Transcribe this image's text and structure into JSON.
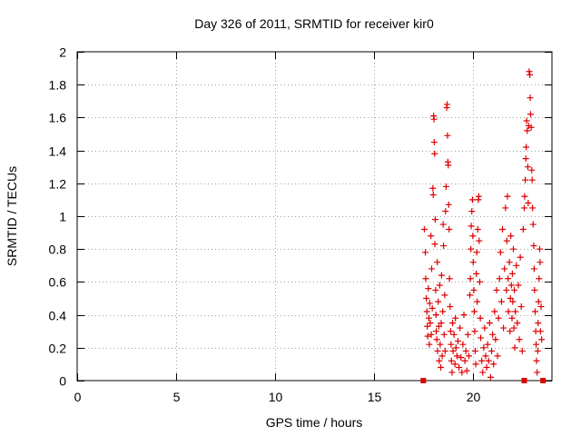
{
  "chart_data": {
    "type": "scatter",
    "title": "Day 326 of 2011, SRMTID for receiver kir0",
    "xlabel": "GPS time / hours",
    "ylabel": "SRMTID / TECUs",
    "xlim": [
      0,
      24
    ],
    "ylim": [
      0,
      2
    ],
    "grid": true,
    "x_ticks": [
      0,
      5,
      10,
      15,
      20
    ],
    "x_tick_labels": [
      "0",
      "5",
      "10",
      "15",
      "20"
    ],
    "y_ticks": [
      0,
      0.2,
      0.4,
      0.6,
      0.8,
      1,
      1.2,
      1.4,
      1.6,
      1.8,
      2
    ],
    "y_tick_labels": [
      "0",
      "0.2",
      "0.4",
      "0.6",
      "0.8",
      "1",
      "1.2",
      "1.4",
      "1.6",
      "1.8",
      "2"
    ],
    "series": [
      {
        "name": "SRMTID",
        "color": "#dd0000",
        "marker": "plus",
        "points": [
          [
            17.55,
            0.92
          ],
          [
            17.6,
            0.78
          ],
          [
            17.62,
            0.62
          ],
          [
            17.65,
            0.5
          ],
          [
            17.68,
            0.42
          ],
          [
            17.7,
            0.33
          ],
          [
            17.72,
            0.27
          ],
          [
            17.75,
            0.56
          ],
          [
            17.78,
            0.38
          ],
          [
            17.8,
            0.22
          ],
          [
            17.82,
            0.47
          ],
          [
            17.85,
            0.35
          ],
          [
            17.88,
            0.88
          ],
          [
            17.9,
            0.28
          ],
          [
            17.92,
            0.68
          ],
          [
            17.95,
            0.44
          ],
          [
            17.98,
            1.17
          ],
          [
            18.0,
            1.13
          ],
          [
            18.02,
            1.61
          ],
          [
            18.04,
            1.59
          ],
          [
            18.05,
            1.45
          ],
          [
            18.07,
            1.38
          ],
          [
            18.08,
            0.83
          ],
          [
            18.1,
            0.98
          ],
          [
            18.12,
            0.55
          ],
          [
            18.14,
            0.4
          ],
          [
            18.15,
            0.3
          ],
          [
            18.18,
            0.25
          ],
          [
            18.2,
            0.72
          ],
          [
            18.22,
            0.18
          ],
          [
            18.25,
            0.48
          ],
          [
            18.28,
            0.33
          ],
          [
            18.3,
            0.12
          ],
          [
            18.32,
            0.58
          ],
          [
            18.35,
            0.22
          ],
          [
            18.38,
            0.08
          ],
          [
            18.4,
            0.35
          ],
          [
            18.42,
            0.64
          ],
          [
            18.45,
            0.15
          ],
          [
            18.48,
            0.42
          ],
          [
            18.5,
            0.95
          ],
          [
            18.52,
            0.82
          ],
          [
            18.55,
            0.28
          ],
          [
            18.58,
            0.52
          ],
          [
            18.6,
            0.18
          ],
          [
            18.62,
            1.03
          ],
          [
            18.65,
            1.18
          ],
          [
            18.68,
            1.66
          ],
          [
            18.7,
            1.68
          ],
          [
            18.72,
            1.49
          ],
          [
            18.74,
            1.33
          ],
          [
            18.76,
            1.31
          ],
          [
            18.78,
            1.07
          ],
          [
            18.8,
            0.92
          ],
          [
            18.82,
            0.62
          ],
          [
            18.85,
            0.45
          ],
          [
            18.88,
            0.3
          ],
          [
            18.9,
            0.22
          ],
          [
            18.92,
            0.12
          ],
          [
            18.95,
            0.05
          ],
          [
            18.98,
            0.35
          ],
          [
            19.0,
            0.18
          ],
          [
            19.05,
            0.28
          ],
          [
            19.1,
            0.1
          ],
          [
            19.12,
            0.38
          ],
          [
            19.15,
            0.2
          ],
          [
            19.2,
            0.15
          ],
          [
            19.25,
            0.24
          ],
          [
            19.3,
            0.08
          ],
          [
            19.35,
            0.32
          ],
          [
            19.4,
            0.14
          ],
          [
            19.45,
            0.05
          ],
          [
            19.5,
            0.22
          ],
          [
            19.55,
            0.4
          ],
          [
            19.6,
            0.12
          ],
          [
            19.65,
            0.18
          ],
          [
            19.7,
            0.06
          ],
          [
            19.75,
            0.28
          ],
          [
            19.8,
            0.15
          ],
          [
            19.85,
            0.52
          ],
          [
            19.88,
            0.62
          ],
          [
            19.9,
            0.8
          ],
          [
            19.92,
            0.94
          ],
          [
            19.95,
            1.03
          ],
          [
            19.98,
            1.1
          ],
          [
            20.0,
            0.88
          ],
          [
            20.02,
            0.72
          ],
          [
            20.05,
            0.55
          ],
          [
            20.08,
            0.42
          ],
          [
            20.1,
            0.3
          ],
          [
            20.12,
            0.18
          ],
          [
            20.15,
            0.1
          ],
          [
            20.18,
            0.65
          ],
          [
            20.2,
            0.78
          ],
          [
            20.22,
            0.48
          ],
          [
            20.25,
            0.92
          ],
          [
            20.28,
            1.1
          ],
          [
            20.3,
            1.12
          ],
          [
            20.32,
            0.85
          ],
          [
            20.35,
            0.6
          ],
          [
            20.38,
            0.38
          ],
          [
            20.4,
            0.26
          ],
          [
            20.45,
            0.12
          ],
          [
            20.5,
            0.05
          ],
          [
            20.55,
            0.2
          ],
          [
            20.6,
            0.32
          ],
          [
            20.65,
            0.15
          ],
          [
            20.7,
            0.08
          ],
          [
            20.75,
            0.22
          ],
          [
            20.8,
            0.12
          ],
          [
            20.85,
            0.35
          ],
          [
            20.9,
            0.02
          ],
          [
            20.95,
            0.18
          ],
          [
            21.0,
            0.28
          ],
          [
            21.05,
            0.1
          ],
          [
            21.1,
            0.42
          ],
          [
            21.15,
            0.25
          ],
          [
            21.2,
            0.55
          ],
          [
            21.25,
            0.15
          ],
          [
            21.3,
            0.38
          ],
          [
            21.35,
            0.62
          ],
          [
            21.4,
            0.78
          ],
          [
            21.45,
            0.48
          ],
          [
            21.5,
            0.92
          ],
          [
            21.55,
            0.32
          ],
          [
            21.6,
            0.68
          ],
          [
            21.65,
            1.05
          ],
          [
            21.7,
            0.55
          ],
          [
            21.72,
            0.85
          ],
          [
            21.75,
            1.12
          ],
          [
            21.78,
            0.62
          ],
          [
            21.8,
            0.42
          ],
          [
            21.85,
            0.72
          ],
          [
            21.88,
            0.3
          ],
          [
            21.9,
            0.5
          ],
          [
            21.92,
            0.88
          ],
          [
            21.95,
            0.58
          ],
          [
            21.98,
            0.38
          ],
          [
            22.0,
            0.65
          ],
          [
            22.02,
            0.48
          ],
          [
            22.05,
            0.8
          ],
          [
            22.08,
            0.32
          ],
          [
            22.1,
            0.55
          ],
          [
            22.12,
            0.2
          ],
          [
            22.15,
            0.42
          ],
          [
            22.2,
            0.7
          ],
          [
            22.25,
            0.35
          ],
          [
            22.3,
            0.58
          ],
          [
            22.35,
            0.25
          ],
          [
            22.4,
            0.75
          ],
          [
            22.45,
            0.45
          ],
          [
            22.5,
            0.18
          ],
          [
            22.55,
            0.92
          ],
          [
            22.6,
            1.05
          ],
          [
            22.62,
            1.12
          ],
          [
            22.65,
            1.22
          ],
          [
            22.68,
            1.35
          ],
          [
            22.7,
            1.42
          ],
          [
            22.72,
            1.58
          ],
          [
            22.75,
            1.52
          ],
          [
            22.78,
            1.3
          ],
          [
            22.8,
            1.08
          ],
          [
            22.82,
            1.55
          ],
          [
            22.85,
            1.88
          ],
          [
            22.88,
            1.86
          ],
          [
            22.9,
            1.72
          ],
          [
            22.92,
            1.62
          ],
          [
            22.95,
            1.54
          ],
          [
            22.98,
            1.28
          ],
          [
            23.0,
            1.22
          ],
          [
            23.02,
            1.05
          ],
          [
            23.05,
            0.95
          ],
          [
            23.08,
            0.82
          ],
          [
            23.1,
            0.68
          ],
          [
            23.12,
            0.55
          ],
          [
            23.15,
            0.42
          ],
          [
            23.18,
            0.3
          ],
          [
            23.2,
            0.22
          ],
          [
            23.22,
            0.12
          ],
          [
            23.25,
            0.05
          ],
          [
            23.28,
            0.18
          ],
          [
            23.3,
            0.35
          ],
          [
            23.32,
            0.48
          ],
          [
            23.35,
            0.62
          ],
          [
            23.38,
            0.8
          ],
          [
            23.4,
            0.72
          ],
          [
            23.42,
            0.3
          ],
          [
            23.45,
            0.45
          ],
          [
            23.48,
            0.25
          ]
        ]
      }
    ],
    "zero_markers": [
      17.5,
      22.6,
      23.55
    ]
  }
}
